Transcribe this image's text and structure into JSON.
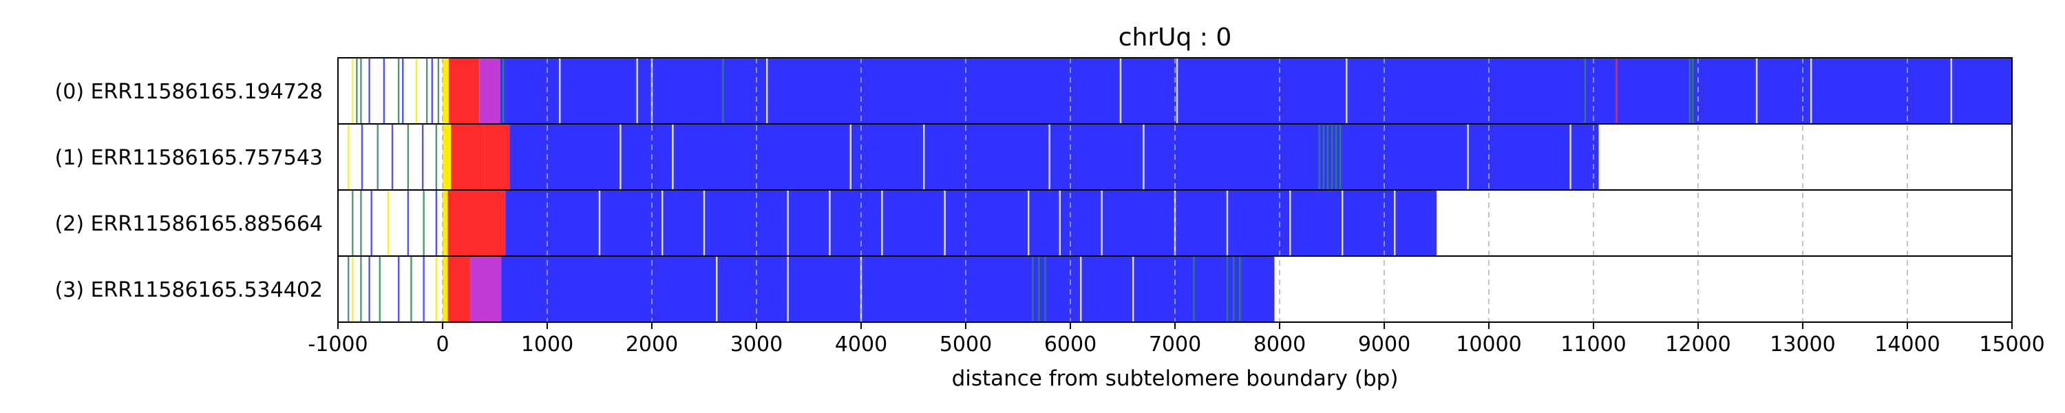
{
  "chart_data": {
    "type": "heatmap",
    "title": "chrUq : 0",
    "xlabel": "distance from subtelomere boundary (bp)",
    "xlim": [
      -1000,
      15000
    ],
    "x_ticks": [
      {
        "value": -1000,
        "label": "-1000"
      },
      {
        "value": 0,
        "label": "0"
      },
      {
        "value": 1000,
        "label": "1000"
      },
      {
        "value": 2000,
        "label": "2000"
      },
      {
        "value": 3000,
        "label": "3000"
      },
      {
        "value": 4000,
        "label": "4000"
      },
      {
        "value": 5000,
        "label": "5000"
      },
      {
        "value": 6000,
        "label": "6000"
      },
      {
        "value": 7000,
        "label": "7000"
      },
      {
        "value": 8000,
        "label": "8000"
      },
      {
        "value": 9000,
        "label": "9000"
      },
      {
        "value": 10000,
        "label": "10000"
      },
      {
        "value": 11000,
        "label": "11000"
      },
      {
        "value": 12000,
        "label": "12000"
      },
      {
        "value": 13000,
        "label": "13000"
      },
      {
        "value": 14000,
        "label": "14000"
      },
      {
        "value": 15000,
        "label": "15000"
      }
    ],
    "grid": "vertical dashed at 1000 bp intervals",
    "colors": {
      "repeat": "#3333ff",
      "background_variant": "#ffffff",
      "green_variant": "#2e8b57",
      "yellow_variant": "#ffee00",
      "red_region": "#ff2a2a",
      "magenta_region": "#c23bd4",
      "gap": "#ffffff",
      "grid": "#b0b0b0"
    },
    "reads": [
      {
        "label": "(0) ERR11586165.194728",
        "end": 15000,
        "segments": [
          {
            "start": -1000,
            "end": 0,
            "color": "white"
          },
          {
            "start": 0,
            "end": 60,
            "color": "yellow"
          },
          {
            "start": 60,
            "end": 350,
            "color": "red"
          },
          {
            "start": 350,
            "end": 550,
            "color": "magenta"
          },
          {
            "start": 550,
            "end": 15000,
            "color": "blue"
          }
        ],
        "marks": [
          {
            "x": -860,
            "color": "yellow"
          },
          {
            "x": -820,
            "color": "green"
          },
          {
            "x": -780,
            "color": "green"
          },
          {
            "x": -700,
            "color": "blue"
          },
          {
            "x": -560,
            "color": "blue"
          },
          {
            "x": -420,
            "color": "green"
          },
          {
            "x": -380,
            "color": "blue"
          },
          {
            "x": -250,
            "color": "yellow"
          },
          {
            "x": -150,
            "color": "green"
          },
          {
            "x": -100,
            "color": "blue"
          },
          {
            "x": -40,
            "color": "green"
          },
          {
            "x": 580,
            "color": "green"
          },
          {
            "x": 1120,
            "color": "white"
          },
          {
            "x": 1860,
            "color": "white"
          },
          {
            "x": 2000,
            "color": "white"
          },
          {
            "x": 2680,
            "color": "green"
          },
          {
            "x": 3100,
            "color": "white"
          },
          {
            "x": 6480,
            "color": "white"
          },
          {
            "x": 7020,
            "color": "white"
          },
          {
            "x": 8640,
            "color": "white"
          },
          {
            "x": 10920,
            "color": "green"
          },
          {
            "x": 11220,
            "color": "red"
          },
          {
            "x": 11920,
            "color": "green"
          },
          {
            "x": 11950,
            "color": "green"
          },
          {
            "x": 12560,
            "color": "white"
          },
          {
            "x": 13080,
            "color": "white"
          },
          {
            "x": 14420,
            "color": "white"
          }
        ]
      },
      {
        "label": "(1) ERR11586165.757543",
        "end": 11050,
        "segments": [
          {
            "start": -1000,
            "end": 0,
            "color": "white"
          },
          {
            "start": 0,
            "end": 80,
            "color": "yellow"
          },
          {
            "start": 80,
            "end": 400,
            "color": "red"
          },
          {
            "start": 400,
            "end": 640,
            "color": "red"
          },
          {
            "start": 640,
            "end": 11050,
            "color": "blue"
          }
        ],
        "marks": [
          {
            "x": -900,
            "color": "yellow"
          },
          {
            "x": -770,
            "color": "blue"
          },
          {
            "x": -620,
            "color": "green"
          },
          {
            "x": -480,
            "color": "blue"
          },
          {
            "x": -330,
            "color": "green"
          },
          {
            "x": -190,
            "color": "blue"
          },
          {
            "x": -60,
            "color": "green"
          },
          {
            "x": 1700,
            "color": "white"
          },
          {
            "x": 2200,
            "color": "white"
          },
          {
            "x": 3900,
            "color": "white"
          },
          {
            "x": 4600,
            "color": "white"
          },
          {
            "x": 5800,
            "color": "white"
          },
          {
            "x": 6700,
            "color": "white"
          },
          {
            "x": 8380,
            "color": "green"
          },
          {
            "x": 8420,
            "color": "green"
          },
          {
            "x": 8460,
            "color": "green"
          },
          {
            "x": 8500,
            "color": "green"
          },
          {
            "x": 8540,
            "color": "green"
          },
          {
            "x": 8580,
            "color": "green"
          },
          {
            "x": 9800,
            "color": "white"
          },
          {
            "x": 10780,
            "color": "white"
          }
        ]
      },
      {
        "label": "(2) ERR11586165.885664",
        "end": 9500,
        "segments": [
          {
            "start": -1000,
            "end": 0,
            "color": "white"
          },
          {
            "start": 0,
            "end": 50,
            "color": "yellow"
          },
          {
            "start": 50,
            "end": 600,
            "color": "red"
          },
          {
            "start": 600,
            "end": 9500,
            "color": "blue"
          }
        ],
        "marks": [
          {
            "x": -860,
            "color": "green"
          },
          {
            "x": -780,
            "color": "green"
          },
          {
            "x": -680,
            "color": "blue"
          },
          {
            "x": -520,
            "color": "yellow"
          },
          {
            "x": -330,
            "color": "blue"
          },
          {
            "x": -180,
            "color": "green"
          },
          {
            "x": -60,
            "color": "blue"
          },
          {
            "x": 1500,
            "color": "white"
          },
          {
            "x": 2100,
            "color": "white"
          },
          {
            "x": 2500,
            "color": "white"
          },
          {
            "x": 3300,
            "color": "white"
          },
          {
            "x": 3700,
            "color": "white"
          },
          {
            "x": 4200,
            "color": "white"
          },
          {
            "x": 4800,
            "color": "white"
          },
          {
            "x": 5600,
            "color": "white"
          },
          {
            "x": 5900,
            "color": "white"
          },
          {
            "x": 6300,
            "color": "white"
          },
          {
            "x": 7000,
            "color": "white"
          },
          {
            "x": 7500,
            "color": "white"
          },
          {
            "x": 8100,
            "color": "white"
          },
          {
            "x": 8600,
            "color": "white"
          },
          {
            "x": 9100,
            "color": "white"
          }
        ]
      },
      {
        "label": "(3) ERR11586165.534402",
        "end": 7950,
        "segments": [
          {
            "start": -1000,
            "end": 0,
            "color": "white"
          },
          {
            "start": 0,
            "end": 50,
            "color": "yellow"
          },
          {
            "start": 50,
            "end": 260,
            "color": "red"
          },
          {
            "start": 260,
            "end": 560,
            "color": "magenta"
          },
          {
            "start": 560,
            "end": 7950,
            "color": "blue"
          }
        ],
        "marks": [
          {
            "x": -900,
            "color": "green"
          },
          {
            "x": -860,
            "color": "yellow"
          },
          {
            "x": -780,
            "color": "green"
          },
          {
            "x": -700,
            "color": "blue"
          },
          {
            "x": -600,
            "color": "green"
          },
          {
            "x": -420,
            "color": "blue"
          },
          {
            "x": -300,
            "color": "green"
          },
          {
            "x": -180,
            "color": "blue"
          },
          {
            "x": -60,
            "color": "yellow"
          },
          {
            "x": 2620,
            "color": "white"
          },
          {
            "x": 3300,
            "color": "white"
          },
          {
            "x": 4000,
            "color": "white"
          },
          {
            "x": 5640,
            "color": "green"
          },
          {
            "x": 5700,
            "color": "green"
          },
          {
            "x": 5760,
            "color": "green"
          },
          {
            "x": 6100,
            "color": "white"
          },
          {
            "x": 6600,
            "color": "white"
          },
          {
            "x": 7180,
            "color": "green"
          },
          {
            "x": 7500,
            "color": "green"
          },
          {
            "x": 7560,
            "color": "green"
          },
          {
            "x": 7620,
            "color": "green"
          }
        ]
      }
    ]
  }
}
